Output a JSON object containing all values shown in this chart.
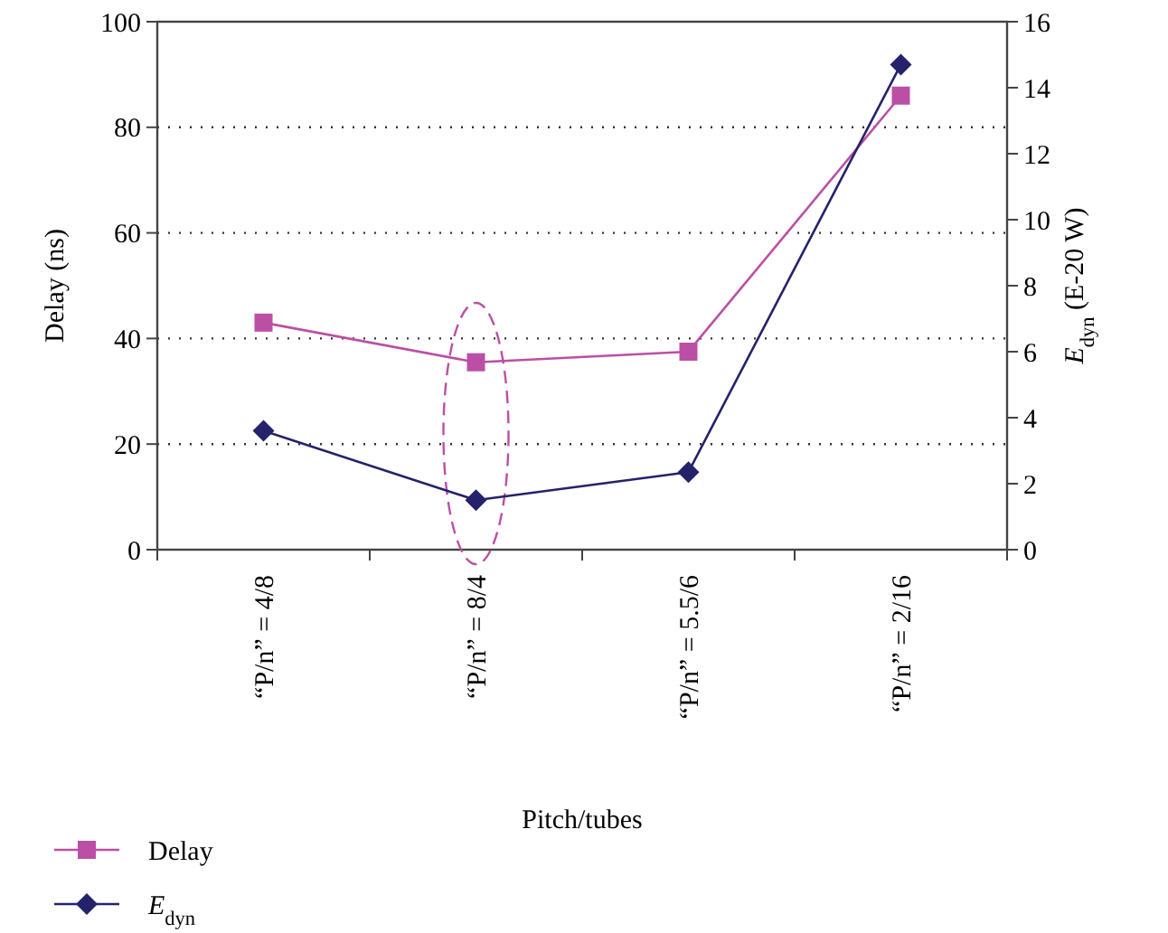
{
  "chart_data": {
    "type": "line",
    "ylabel": "Delay (ns)",
    "y2label": "E$_{dyn}$ (E-20 W)",
    "xlabel": "Pitch/tubes",
    "categories": [
      "“P/n” = 4/8",
      "“P/n” = 8/4",
      "“P/n” = 5.5/6",
      "“P/n” = 2/16"
    ],
    "series": [
      {
        "name": "Delay",
        "color": "#bb4fa5",
        "marker": "square",
        "values": [
          43,
          35.5,
          37.5,
          86
        ]
      },
      {
        "name": "E$_{dyn}$",
        "color": "#25226b",
        "marker": "diamond",
        "axis": "y2",
        "values": [
          3.6,
          1.5,
          2.35,
          14.7
        ]
      }
    ],
    "ylim": [
      0,
      100
    ],
    "yticks": [
      0,
      20,
      40,
      60,
      80,
      100
    ],
    "y2lim": [
      0,
      16
    ],
    "y2ticks": [
      0,
      2,
      4,
      6,
      8,
      10,
      12,
      14,
      16
    ],
    "grid": "y",
    "legend": "bottom left"
  }
}
